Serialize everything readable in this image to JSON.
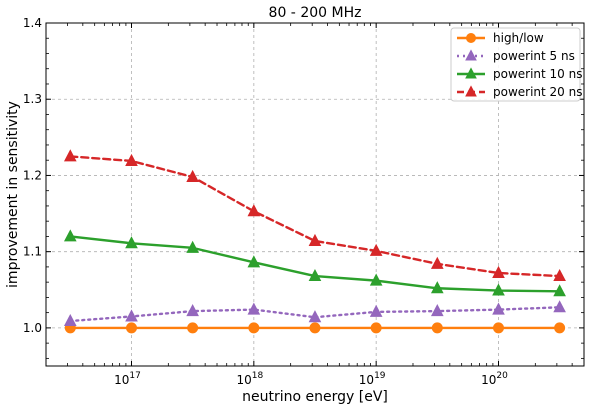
{
  "chart_data": {
    "type": "line",
    "title": "80 - 200 MHz",
    "xlabel": "neutrino energy [eV]",
    "ylabel": "improvement in sensitivity",
    "xscale": "log",
    "xlim": [
      2e+16,
      5e+20
    ],
    "ylim": [
      0.95,
      1.4
    ],
    "grid": true,
    "legend_position": "top-right",
    "x": [
      3.16e+16,
      1e+17,
      3.16e+17,
      1e+18,
      3.16e+18,
      1e+19,
      3.16e+19,
      1e+20,
      3.16e+20
    ],
    "y_ticks": [
      "1.0",
      "1.1",
      "1.2",
      "1.3",
      "1.4"
    ],
    "x_ticks": [
      {
        "base": "10",
        "exp": "17"
      },
      {
        "base": "10",
        "exp": "18"
      },
      {
        "base": "10",
        "exp": "19"
      },
      {
        "base": "10",
        "exp": "20"
      }
    ],
    "series": [
      {
        "name": "high/low",
        "color": "#ff7f0e",
        "marker": "circle",
        "linestyle": "solid",
        "values": [
          1.0,
          1.0,
          1.0,
          1.0,
          1.0,
          1.0,
          1.0,
          1.0,
          1.0
        ]
      },
      {
        "name": "powerint 5 ns",
        "color": "#9467bd",
        "marker": "triangle",
        "linestyle": "dotted",
        "values": [
          1.009,
          1.015,
          1.022,
          1.024,
          1.014,
          1.021,
          1.022,
          1.024,
          1.027
        ]
      },
      {
        "name": "powerint 10 ns",
        "color": "#2ca02c",
        "marker": "triangle",
        "linestyle": "solid",
        "values": [
          1.12,
          1.111,
          1.105,
          1.086,
          1.068,
          1.062,
          1.052,
          1.049,
          1.048
        ]
      },
      {
        "name": "powerint 20 ns",
        "color": "#d62728",
        "marker": "triangle",
        "linestyle": "dashed",
        "values": [
          1.225,
          1.219,
          1.198,
          1.153,
          1.114,
          1.101,
          1.084,
          1.072,
          1.068
        ]
      }
    ]
  }
}
